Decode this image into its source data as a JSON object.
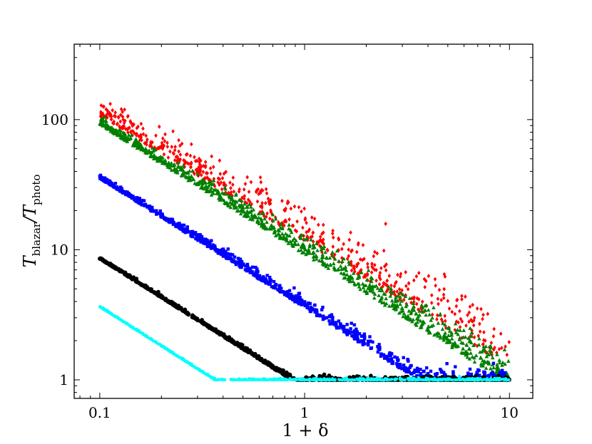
{
  "chart_data": {
    "type": "scatter",
    "x_scale": "log",
    "y_scale": "log",
    "xlim": [
      0.075,
      13
    ],
    "ylim": [
      0.72,
      380
    ],
    "x_ticks": [
      {
        "value": 0.1,
        "label": "0.1"
      },
      {
        "value": 1,
        "label": "1"
      },
      {
        "value": 10,
        "label": "10"
      }
    ],
    "y_ticks": [
      {
        "value": 1,
        "label": "1"
      },
      {
        "value": 10,
        "label": "10"
      },
      {
        "value": 100,
        "label": "100"
      }
    ],
    "xlabel": {
      "main": "1 + δ"
    },
    "ylabel": {
      "main": "T",
      "sub1": "blazar",
      "mid": "/T",
      "sub2": "photo"
    },
    "grid": false,
    "legend": false,
    "series": [
      {
        "color": "#ff0000",
        "marker": "diamond",
        "count": 600,
        "x_range": [
          0.1,
          10
        ],
        "y_at_x_min": 117,
        "slope": -0.93,
        "y_floor": 1.0,
        "log_scatter_base": 0.05,
        "log_scatter_growth": 0.09
      },
      {
        "color": "#008000",
        "marker": "triangle",
        "count": 900,
        "x_range": [
          0.1,
          10
        ],
        "y_at_x_min": 95,
        "slope": -0.97,
        "y_floor": 1.0,
        "log_scatter_base": 0.02,
        "log_scatter_growth": 0.07
      },
      {
        "color": "#0000ff",
        "marker": "square",
        "count": 900,
        "x_range": [
          0.1,
          10
        ],
        "y_at_x_min": 36,
        "slope": -0.98,
        "y_floor": 1.0,
        "log_scatter_base": 0.01,
        "log_scatter_growth": 0.04
      },
      {
        "color": "#000000",
        "marker": "circle",
        "count": 900,
        "x_range": [
          0.1,
          10
        ],
        "y_at_x_min": 8.6,
        "slope": -0.99,
        "y_floor": 1.0,
        "log_scatter_base": 0.005,
        "log_scatter_growth": 0.012
      },
      {
        "color": "#00ffff",
        "marker": "star",
        "count": 900,
        "x_range": [
          0.1,
          10
        ],
        "y_at_x_min": 3.65,
        "slope": -1.0,
        "y_floor": 1.0,
        "log_scatter_base": 0.003,
        "log_scatter_growth": 0.004
      }
    ]
  }
}
